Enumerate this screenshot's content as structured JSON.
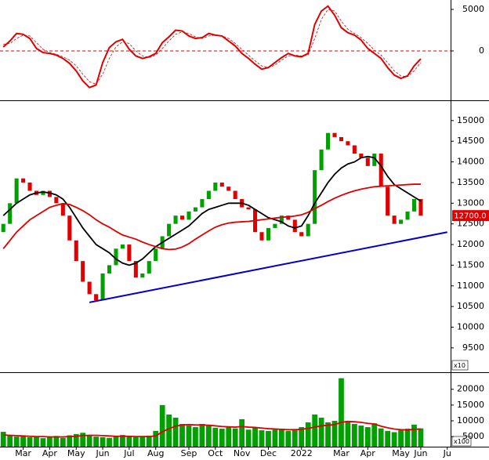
{
  "chart_data": [
    {
      "type": "line",
      "series": [
        {
          "color": "#e00000",
          "values": [
            470,
            1200,
            2100,
            2000,
            1500,
            300,
            -200,
            -300,
            -500,
            -900,
            -1500,
            -2400,
            -3600,
            -4400,
            -4100,
            -1400,
            400,
            1100,
            1400,
            200,
            -600,
            -900,
            -700,
            -300,
            1000,
            1700,
            2500,
            2400,
            1800,
            1500,
            1600,
            2100,
            1900,
            1800,
            1200,
            600,
            -300,
            -900,
            -1600,
            -2200,
            -2000,
            -1400,
            -800,
            -300,
            -600,
            -700,
            -300,
            3200,
            4800,
            5400,
            4300,
            2800,
            2200,
            1900,
            1300,
            300,
            -300,
            -900,
            -2000,
            -2900,
            -3300,
            -3000,
            -1800,
            -950,
            null,
            null,
            null,
            null
          ]
        },
        {
          "color": "#e00000",
          "dash": true,
          "values": [
            800,
            900,
            1500,
            1900,
            1800,
            1000,
            200,
            -200,
            -400,
            -700,
            -1100,
            -1800,
            -2800,
            -3700,
            -4000,
            -2800,
            -900,
            500,
            1100,
            900,
            0,
            -600,
            -800,
            -500,
            300,
            1200,
            2000,
            2300,
            2100,
            1700,
            1500,
            1800,
            1900,
            1800,
            1500,
            900,
            200,
            -500,
            -1200,
            -1800,
            -2000,
            -1700,
            -1100,
            -600,
            -500,
            -600,
            -500,
            1500,
            3800,
            5000,
            4800,
            3600,
            2600,
            2100,
            1600,
            900,
            100,
            -500,
            -1400,
            -2400,
            -3000,
            -3100,
            -2400,
            -1400,
            null,
            null,
            null,
            null
          ]
        }
      ],
      "reference_line": 0,
      "ylim": [
        -5940,
        6130
      ],
      "yticks": [
        0,
        5000
      ]
    },
    {
      "type": "candlestick",
      "open": [
        12300,
        12500,
        13000,
        13600,
        13500,
        13300,
        13200,
        13300,
        13150,
        13000,
        12700,
        12100,
        11600,
        11100,
        10800,
        10650,
        11300,
        11500,
        11900,
        12000,
        11600,
        11200,
        11300,
        11600,
        11900,
        12200,
        12500,
        12700,
        12600,
        12800,
        12900,
        13100,
        13300,
        13500,
        13400,
        13300,
        13100,
        12900,
        12850,
        12300,
        12100,
        12400,
        12500,
        12700,
        12600,
        12300,
        12200,
        12500,
        13800,
        14300,
        14700,
        14600,
        14500,
        14400,
        14200,
        14100,
        13900,
        14200,
        13400,
        12700,
        12500,
        12600,
        12800,
        13100,
        null,
        null,
        null,
        null
      ],
      "close": [
        12500,
        13000,
        13600,
        13500,
        13300,
        13200,
        13300,
        13150,
        13000,
        12700,
        12100,
        11600,
        11100,
        10800,
        10650,
        11300,
        11500,
        11900,
        12000,
        11600,
        11200,
        11300,
        11600,
        11900,
        12200,
        12500,
        12700,
        12600,
        12800,
        12900,
        13100,
        13300,
        13500,
        13400,
        13300,
        13100,
        12900,
        12850,
        12300,
        12100,
        12400,
        12500,
        12700,
        12600,
        12300,
        12200,
        12500,
        13800,
        14300,
        14700,
        14600,
        14500,
        14400,
        14200,
        14100,
        13900,
        14200,
        13400,
        12700,
        12500,
        12600,
        12800,
        13100,
        12700,
        null,
        null,
        null,
        null
      ],
      "up_color": "#00a000",
      "down_color": "#e00000",
      "series": [
        {
          "color": "#000000",
          "values": [
            12700,
            12850,
            13000,
            13100,
            13200,
            13250,
            13270,
            13250,
            13200,
            13100,
            12900,
            12650,
            12400,
            12200,
            12000,
            11900,
            11800,
            11650,
            11550,
            11500,
            11550,
            11650,
            11800,
            11950,
            12050,
            12150,
            12250,
            12350,
            12450,
            12600,
            12750,
            12850,
            12900,
            12950,
            13000,
            13000,
            13000,
            12950,
            12850,
            12750,
            12650,
            12600,
            12550,
            12450,
            12400,
            12450,
            12700,
            13000,
            13250,
            13500,
            13700,
            13850,
            13950,
            14000,
            14100,
            14130,
            14100,
            13900,
            13650,
            13450,
            13350,
            13250,
            13150,
            13050,
            null,
            null,
            null,
            null
          ]
        },
        {
          "color": "#e00000",
          "values": [
            11900,
            12100,
            12300,
            12450,
            12600,
            12700,
            12800,
            12900,
            12950,
            12990,
            12970,
            12900,
            12820,
            12720,
            12600,
            12500,
            12420,
            12320,
            12230,
            12180,
            12130,
            12060,
            12000,
            11950,
            11900,
            11880,
            11890,
            11940,
            12020,
            12130,
            12230,
            12330,
            12420,
            12480,
            12520,
            12540,
            12550,
            12560,
            12580,
            12600,
            12620,
            12640,
            12660,
            12670,
            12690,
            12720,
            12780,
            12870,
            12950,
            13040,
            13120,
            13190,
            13250,
            13300,
            13340,
            13370,
            13400,
            13410,
            13420,
            13430,
            13440,
            13450,
            13460,
            13460,
            null,
            null,
            null,
            null
          ]
        }
      ],
      "trendline": {
        "color": "#0000cc",
        "x": [
          13,
          67
        ],
        "values": [
          10600,
          12300
        ]
      },
      "last_price": {
        "value": 12700,
        "label": "12700.0"
      },
      "unit_label": "x10",
      "ylim": [
        8910,
        15490
      ],
      "yticks": [
        9500,
        10000,
        10500,
        11000,
        11500,
        12000,
        12500,
        13000,
        13500,
        14000,
        14500,
        15000
      ]
    },
    {
      "type": "bar",
      "categories": [
        null,
        null,
        null,
        "Mar",
        null,
        null,
        null,
        "Apr",
        null,
        null,
        null,
        "May",
        null,
        null,
        null,
        "Jun",
        null,
        null,
        null,
        "Jul",
        null,
        null,
        null,
        "Aug",
        null,
        null,
        null,
        null,
        "Sep",
        null,
        null,
        null,
        "Oct",
        null,
        null,
        null,
        "Nov",
        null,
        null,
        null,
        "Dec",
        null,
        null,
        null,
        null,
        "2022",
        null,
        null,
        null,
        null,
        null,
        "Mar",
        null,
        null,
        null,
        "Apr",
        null,
        null,
        null,
        null,
        "May",
        null,
        null,
        "Jun",
        null,
        null,
        null,
        "Ju"
      ],
      "values": [
        6500,
        5500,
        5000,
        5200,
        4800,
        5000,
        4500,
        4800,
        5200,
        4600,
        5400,
        5800,
        6200,
        5400,
        5000,
        4800,
        4600,
        5200,
        5500,
        5000,
        4800,
        5200,
        5300,
        6800,
        15000,
        12000,
        11000,
        9000,
        8500,
        8000,
        9000,
        8500,
        7800,
        7500,
        8000,
        7600,
        10500,
        7200,
        7800,
        7000,
        6800,
        7200,
        7500,
        6800,
        7000,
        8000,
        9500,
        12000,
        11000,
        9500,
        10000,
        23500,
        10000,
        9000,
        8500,
        8000,
        9200,
        7600,
        6800,
        6400,
        7000,
        7500,
        8800,
        7600,
        null,
        null,
        null,
        null
      ],
      "color": "#00a000",
      "series": [
        {
          "color": "#e00000",
          "values": [
            5500,
            5400,
            5300,
            5200,
            5100,
            5000,
            5000,
            4900,
            4900,
            4900,
            5000,
            5100,
            5300,
            5400,
            5400,
            5300,
            5200,
            5100,
            5100,
            5100,
            5000,
            5000,
            5000,
            5200,
            6500,
            7500,
            8300,
            8700,
            8800,
            8700,
            8700,
            8600,
            8400,
            8200,
            8100,
            8000,
            8200,
            8000,
            7900,
            7700,
            7500,
            7400,
            7300,
            7200,
            7200,
            7300,
            7600,
            8000,
            8400,
            8600,
            8800,
            9500,
            9800,
            9700,
            9500,
            9200,
            9000,
            8300,
            7800,
            7400,
            7200,
            7100,
            7300,
            7400,
            null,
            null,
            null,
            null
          ]
        }
      ],
      "unit_label": "x100",
      "ylim": [
        1800,
        25400
      ],
      "yticks": [
        5000,
        10000,
        15000,
        20000
      ]
    }
  ]
}
